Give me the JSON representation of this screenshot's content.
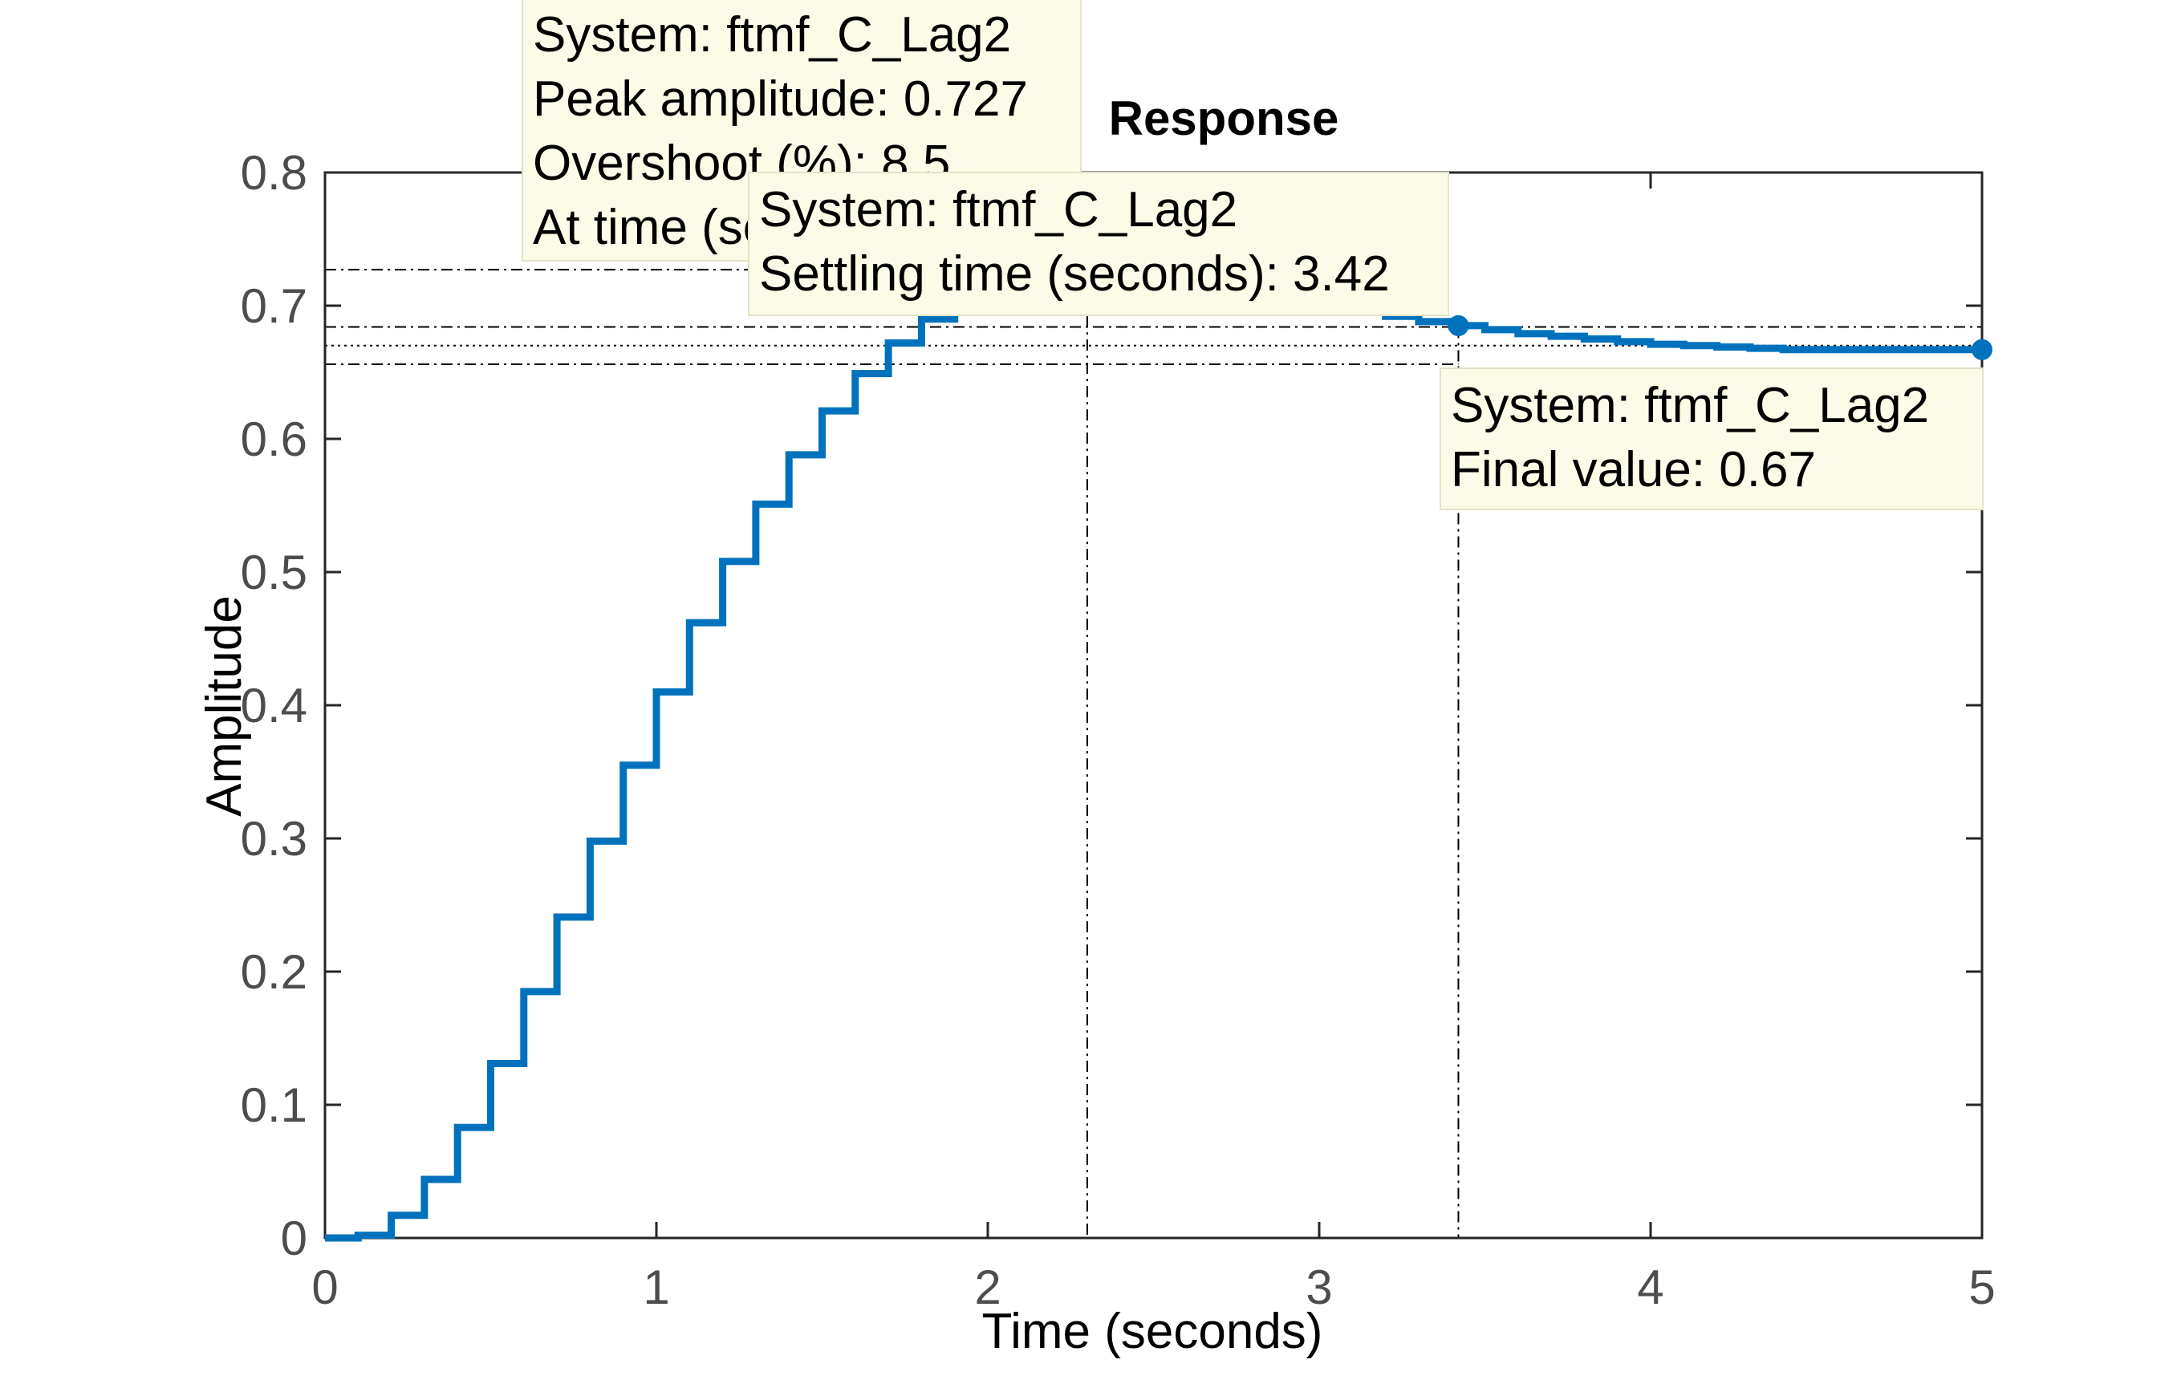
{
  "chart_data": {
    "type": "line",
    "title": "Response",
    "xlabel": "Time (seconds)",
    "ylabel": "Amplitude",
    "xlim": [
      0,
      5
    ],
    "ylim": [
      0,
      0.8
    ],
    "xticks": [
      "0",
      "1",
      "2",
      "3",
      "4",
      "5"
    ],
    "yticks": [
      "0",
      "0.1",
      "0.2",
      "0.3",
      "0.4",
      "0.5",
      "0.6",
      "0.7",
      "0.8"
    ],
    "series": [
      {
        "name": "ftmf_C_Lag2",
        "style": "stairs",
        "color": "#0072bd",
        "x": [
          0,
          0.1,
          0.2,
          0.3,
          0.4,
          0.5,
          0.6,
          0.7,
          0.8,
          0.9,
          1.0,
          1.1,
          1.2,
          1.3,
          1.4,
          1.5,
          1.6,
          1.7,
          1.8,
          1.9,
          2.0,
          2.1,
          2.2,
          2.3,
          2.4,
          2.5,
          2.6,
          2.7,
          2.8,
          2.9,
          3.0,
          3.1,
          3.2,
          3.3,
          3.4,
          3.5,
          3.6,
          3.7,
          3.8,
          3.9,
          4.0,
          4.1,
          4.2,
          4.3,
          4.4,
          4.5,
          4.6,
          4.7,
          4.8,
          4.9,
          5.0
        ],
        "y": [
          0,
          0.002,
          0.017,
          0.044,
          0.083,
          0.131,
          0.185,
          0.241,
          0.298,
          0.355,
          0.41,
          0.462,
          0.508,
          0.551,
          0.588,
          0.621,
          0.649,
          0.672,
          0.69,
          0.705,
          0.716,
          0.723,
          0.726,
          0.727,
          0.726,
          0.723,
          0.72,
          0.716,
          0.711,
          0.706,
          0.701,
          0.697,
          0.692,
          0.688,
          0.685,
          0.682,
          0.679,
          0.677,
          0.675,
          0.673,
          0.671,
          0.67,
          0.669,
          0.668,
          0.667,
          0.667,
          0.667,
          0.667,
          0.667,
          0.667,
          0.667
        ]
      }
    ],
    "reference_lines": {
      "peak_amplitude": 0.727,
      "peak_time": 2.3,
      "settling_time": 3.42,
      "final_value": 0.67,
      "settling_band": [
        0.656,
        0.684
      ]
    },
    "markers": [
      {
        "label": "peak",
        "x": 2.3,
        "y": 0.727
      },
      {
        "label": "settling",
        "x": 3.42,
        "y": 0.685
      },
      {
        "label": "final",
        "x": 5.0,
        "y": 0.667
      }
    ],
    "grid": false,
    "box": true
  },
  "datatips": {
    "peak": {
      "line1": "System: ftmf_C_Lag2",
      "line2": "Peak amplitude: 0.727",
      "line3": "Overshoot (%): 8.5",
      "line4": "At time (seconds): 2.3"
    },
    "settling": {
      "line1": "System: ftmf_C_Lag2",
      "line2": "Settling time (seconds): 3.42"
    },
    "final": {
      "line1": "System: ftmf_C_Lag2",
      "line2": "Final value: 0.67"
    }
  }
}
